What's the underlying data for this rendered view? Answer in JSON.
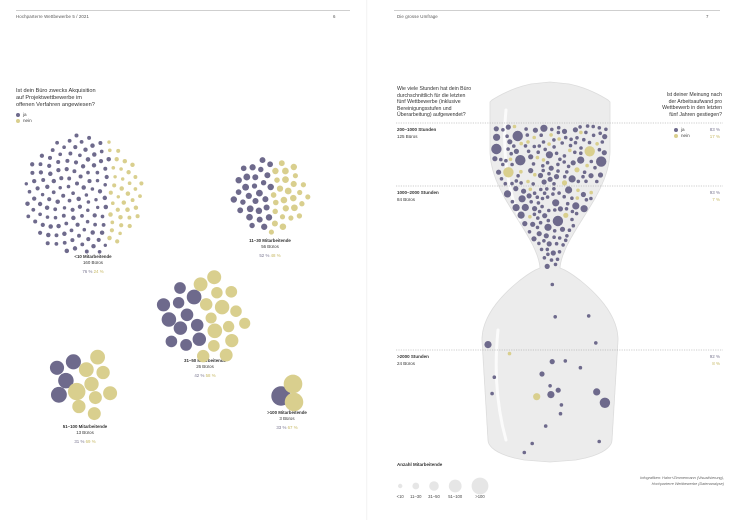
{
  "colors": {
    "ja": "#6e6a8c",
    "nein": "#d9cf8e",
    "glass": "#ececec",
    "glass_edge": "#dcdcdc"
  },
  "left_page": {
    "header": "Hochparterre Wettbewerbe 5 / 2021",
    "page_number": "6",
    "question": [
      "Ist dein Büro zwecks Akquisition",
      "auf Projektwettbewerbe im",
      "offenen Verfahren angewiesen?"
    ],
    "legend": {
      "ja": "ja",
      "nein": "nein"
    }
  },
  "right_page": {
    "header": "Die grosse Umfrage",
    "page_number": "7",
    "question_left": [
      "Wie viele Stunden hat dein Büro",
      "durchschnittlich für die letzten",
      "fünf Wettbewerbe (inklusive",
      "Bereinigungsstufen und",
      "Überarbeitung) aufgewendet?"
    ],
    "question_right": [
      "Ist deiner Meinung nach",
      "der Arbeitsaufwand pro",
      "Wettbewerb in den letzten",
      "fünf Jahren gestiegen?"
    ],
    "legend": {
      "ja": "ja",
      "nein": "nein"
    },
    "size_legend_title": "Anzahl Mitarbeitende",
    "size_legend_labels": [
      "<10",
      "11–30",
      "31–50",
      "51–100",
      ">100"
    ],
    "credit": [
      "Infografiken: Hahn+Zimmermann (Visualisierung),",
      "Hochparterre Wettbewerbe (Datenanalyse)"
    ]
  },
  "chart_data": [
    {
      "type": "bubble-cluster",
      "title": "Ist dein Büro zwecks Akquisition auf Projektwettbewerbe im offenen Verfahren angewiesen?",
      "series": [
        {
          "name": "ja"
        },
        {
          "name": "nein"
        }
      ],
      "groups": [
        {
          "label": "<10 Mitarbeitende",
          "count_label": "160 Büros",
          "count": 160,
          "ja_pct": 76,
          "nein_pct": 24,
          "ja_text": "76 %",
          "nein_text": "24 %"
        },
        {
          "label": "11–30 Mitarbeitende",
          "count_label": "56 Büros",
          "count": 56,
          "ja_pct": 52,
          "nein_pct": 48,
          "ja_text": "52 %",
          "nein_text": "48 %"
        },
        {
          "label": "31–50 Mitarbeitende",
          "count_label": "26 Büros",
          "count": 26,
          "ja_pct": 42,
          "nein_pct": 58,
          "ja_text": "42 %",
          "nein_text": "58 %"
        },
        {
          "label": "51–100 Mitarbeitende",
          "count_label": "13 Büros",
          "count": 13,
          "ja_pct": 31,
          "nein_pct": 69,
          "ja_text": "31 %",
          "nein_text": "69 %"
        },
        {
          "label": ">100 Mitarbeitende",
          "count_label": "3 Büros",
          "count": 3,
          "ja_pct": 33,
          "nein_pct": 67,
          "ja_text": "33 %",
          "nein_text": "67 %"
        }
      ]
    },
    {
      "type": "bubble-hourglass",
      "title": "Wie viele Stunden hat dein Büro durchschnittlich für die letzten fünf Wettbewerbe (inklusive Bereinigungsstufen und Überarbeitung) aufgewendet?",
      "series": [
        {
          "name": "ja"
        },
        {
          "name": "nein"
        }
      ],
      "categories": [
        {
          "label": "200–1000 Stunden",
          "count_label": "125 Büros",
          "count": 125,
          "ja_pct": 83,
          "nein_pct": 17,
          "ja_text": "83 %",
          "nein_text": "17 %"
        },
        {
          "label": "1000–2000 Stunden",
          "count_label": "84 Büros",
          "count": 84,
          "ja_pct": 93,
          "nein_pct": 7,
          "ja_text": "93 %",
          "nein_text": "7 %"
        },
        {
          "label": ">2000 Stunden",
          "count_label": "24 Büros",
          "count": 24,
          "ja_pct": 92,
          "nein_pct": 8,
          "ja_text": "92 %",
          "nein_text": "8 %"
        }
      ]
    }
  ]
}
